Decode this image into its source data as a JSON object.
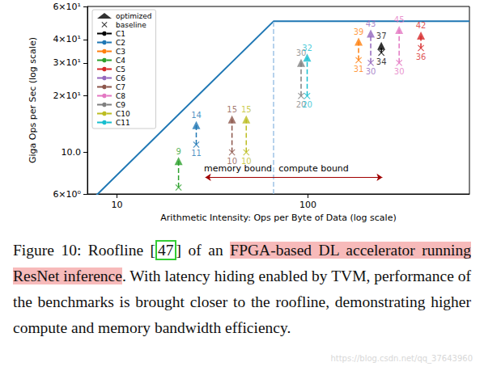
{
  "chart_data": {
    "type": "scatter",
    "xlabel": "Arithmetic Intensity: Ops per Byte of Data (log scale)",
    "ylabel": "Giga Ops per Sec (log scale)",
    "log": true,
    "grid": false,
    "legend": "upper left",
    "data_labels": true,
    "xlim": [
      7,
      700
    ],
    "ylim": [
      6,
      60
    ],
    "xticks": [
      10,
      100
    ],
    "yticks": [
      {
        "value": 6,
        "label": "6×10⁰"
      },
      {
        "value": 10,
        "label": "10.0"
      },
      {
        "value": 20,
        "label": "2×10¹"
      },
      {
        "value": 30,
        "label": "3×10¹"
      },
      {
        "value": 40,
        "label": "4×10¹"
      },
      {
        "value": 60,
        "label": "6×10¹"
      }
    ],
    "marker_series": [
      {
        "name": "optimized",
        "marker": "triangle",
        "color": "#000000"
      },
      {
        "name": "baseline",
        "marker": "x",
        "color": "#000000"
      }
    ],
    "series": [
      {
        "name": "C1",
        "color": "#000000",
        "x": 242,
        "baseline": 34,
        "optimized": 37
      },
      {
        "name": "C2",
        "color": "#1f77b4",
        "x": 26,
        "baseline": 11,
        "optimized": 14
      },
      {
        "name": "C3",
        "color": "#ff7f0e",
        "x": 184,
        "baseline": 31,
        "optimized": 39
      },
      {
        "name": "C4",
        "color": "#2ca02c",
        "x": 21,
        "baseline": 6.5,
        "optimized": 9,
        "value_labels": [
          null,
          "9"
        ]
      },
      {
        "name": "C5",
        "color": "#d62728",
        "x": 390,
        "baseline": 36,
        "optimized": 42
      },
      {
        "name": "C6",
        "color": "#9467bd",
        "x": 213,
        "baseline": 30,
        "optimized": 43
      },
      {
        "name": "C7",
        "color": "#8c564b",
        "x": 40,
        "baseline": 10,
        "optimized": 15
      },
      {
        "name": "C8",
        "color": "#e377c2",
        "x": 300,
        "baseline": 30,
        "optimized": 45
      },
      {
        "name": "C9",
        "color": "#7f7f7f",
        "x": 92,
        "baseline": 20,
        "optimized": 30
      },
      {
        "name": "C10",
        "color": "#bcbd22",
        "x": 47.5,
        "baseline": 10,
        "optimized": 15
      },
      {
        "name": "C11",
        "color": "#17becf",
        "x": 99,
        "baseline": 20,
        "optimized": 32
      }
    ],
    "roofline": {
      "x": [
        7,
        66,
        700
      ],
      "values": [
        5.3,
        50,
        50
      ],
      "color": "#1f77b4"
    },
    "ridge": {
      "x": 66,
      "y": 50,
      "color": "#9ec3e6",
      "line_style": "dashed"
    },
    "bounds": {
      "x": [
        29,
        245
      ],
      "y": 7.36,
      "color": "#a00000",
      "labels": [
        {
          "text": "memory bound",
          "x": 43,
          "y": 8.2
        },
        {
          "text": "compute bound",
          "x": 107,
          "y": 8.2
        }
      ]
    }
  },
  "caption": [
    {
      "text": "Figure 10: Roofline "
    },
    {
      "text": "["
    },
    {
      "text": "47",
      "style": "box"
    },
    {
      "text": "]"
    },
    {
      "text": " of an "
    },
    {
      "text": "FPGA-based DL accelerator running ResNet inference",
      "style": "highlight"
    },
    {
      "text": ". With latency hiding enabled by TVM, performance of the benchmarks is brought closer to the roofline, demonstrating higher compute and memory bandwidth efficiency."
    }
  ],
  "watermark": "https://blog.csdn.net/qq_37643960"
}
